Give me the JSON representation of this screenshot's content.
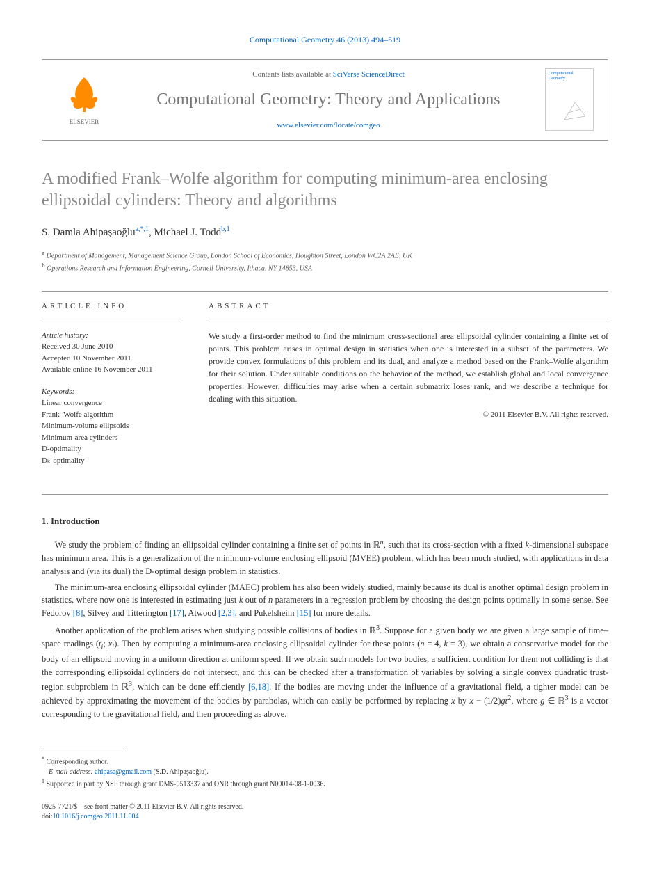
{
  "journal_ref": "Computational Geometry 46 (2013) 494–519",
  "header": {
    "contents_prefix": "Contents lists available at ",
    "contents_link": "SciVerse ScienceDirect",
    "journal_name": "Computational Geometry: Theory and Applications",
    "journal_url": "www.elsevier.com/locate/comgeo",
    "publisher_name": "ELSEVIER",
    "cover_title": "Computational Geometry"
  },
  "title": "A modified Frank–Wolfe algorithm for computing minimum-area enclosing ellipsoidal cylinders: Theory and algorithms",
  "authors": [
    {
      "name": "S. Damla Ahipaşaoğlu",
      "marks": "a,*,1"
    },
    {
      "name": "Michael J. Todd",
      "marks": "b,1"
    }
  ],
  "affiliations": [
    {
      "mark": "a",
      "text": "Department of Management, Management Science Group, London School of Economics, Houghton Street, London WC2A 2AE, UK"
    },
    {
      "mark": "b",
      "text": "Operations Research and Information Engineering, Cornell University, Ithaca, NY 14853, USA"
    }
  ],
  "article_info": {
    "label": "ARTICLE INFO",
    "history_heading": "Article history:",
    "history": [
      "Received 30 June 2010",
      "Accepted 10 November 2011",
      "Available online 16 November 2011"
    ],
    "keywords_heading": "Keywords:",
    "keywords": [
      "Linear convergence",
      "Frank–Wolfe algorithm",
      "Minimum-volume ellipsoids",
      "Minimum-area cylinders",
      "D-optimality",
      "Dₖ-optimality"
    ]
  },
  "abstract": {
    "label": "ABSTRACT",
    "text": "We study a first-order method to find the minimum cross-sectional area ellipsoidal cylinder containing a finite set of points. This problem arises in optimal design in statistics when one is interested in a subset of the parameters. We provide convex formulations of this problem and its dual, and analyze a method based on the Frank–Wolfe algorithm for their solution. Under suitable conditions on the behavior of the method, we establish global and local convergence properties. However, difficulties may arise when a certain submatrix loses rank, and we describe a technique for dealing with this situation.",
    "copyright": "© 2011 Elsevier B.V. All rights reserved."
  },
  "sections": {
    "intro_heading": "1. Introduction",
    "paragraphs": [
      {
        "html": "We study the problem of finding an ellipsoidal cylinder containing a finite set of points in ℝ<sup><span class='math'>n</span></sup>, such that its cross-section with a fixed <span class='math'>k</span>-dimensional subspace has minimum area. This is a generalization of the minimum-volume enclosing ellipsoid (MVEE) problem, which has been much studied, with applications in data analysis and (via its dual) the D-optimal design problem in statistics."
      },
      {
        "html": "The minimum-area enclosing ellipsoidal cylinder (MAEC) problem has also been widely studied, mainly because its dual is another optimal design problem in statistics, where now one is interested in estimating just <span class='math'>k</span> out of <span class='math'>n</span> parameters in a regression problem by choosing the design points optimally in some sense. See Fedorov <span class='ref-link'>[8]</span>, Silvey and Titterington <span class='ref-link'>[17]</span>, Atwood <span class='ref-link'>[2,3]</span>, and Pukelsheim <span class='ref-link'>[15]</span> for more details."
      },
      {
        "html": "Another application of the problem arises when studying possible collisions of bodies in ℝ<sup>3</sup>. Suppose for a given body we are given a large sample of time–space readings (<span class='math'>t<sub>i</sub></span>; <span class='math'>x<sub>i</sub></span>). Then by computing a minimum-area enclosing ellipsoidal cylinder for these points (<span class='math'>n</span> = 4, <span class='math'>k</span> = 3), we obtain a conservative model for the body of an ellipsoid moving in a uniform direction at uniform speed. If we obtain such models for two bodies, a sufficient condition for them not colliding is that the corresponding ellipsoidal cylinders do not intersect, and this can be checked after a transformation of variables by solving a single convex quadratic trust-region subproblem in ℝ<sup>3</sup>, which can be done efficiently <span class='ref-link'>[6,18]</span>. If the bodies are moving under the influence of a gravitational field, a tighter model can be achieved by approximating the movement of the bodies by parabolas, which can easily be performed by replacing <span class='math'>x</span> by <span class='math'>x</span> − (1/2)<span class='math'>gt</span><sup>2</sup>, where <span class='math'>g</span> ∈ ℝ<sup>3</sup> is a vector corresponding to the gravitational field, and then proceeding as above."
      }
    ]
  },
  "footnotes": {
    "corresponding": "Corresponding author.",
    "email_label": "E-mail address:",
    "email": "ahipasa@gmail.com",
    "email_who": "(S.D. Ahipaşaoğlu).",
    "support": "Supported in part by NSF through grant DMS-0513337 and ONR through grant N00014-08-1-0036."
  },
  "footer": {
    "issn": "0925-7721/$ – see front matter © 2011 Elsevier B.V. All rights reserved.",
    "doi_prefix": "doi:",
    "doi": "10.1016/j.comgeo.2011.11.004"
  },
  "colors": {
    "link": "#0066cc",
    "title_gray": "#888888",
    "logo_orange": "#ff8c00"
  }
}
